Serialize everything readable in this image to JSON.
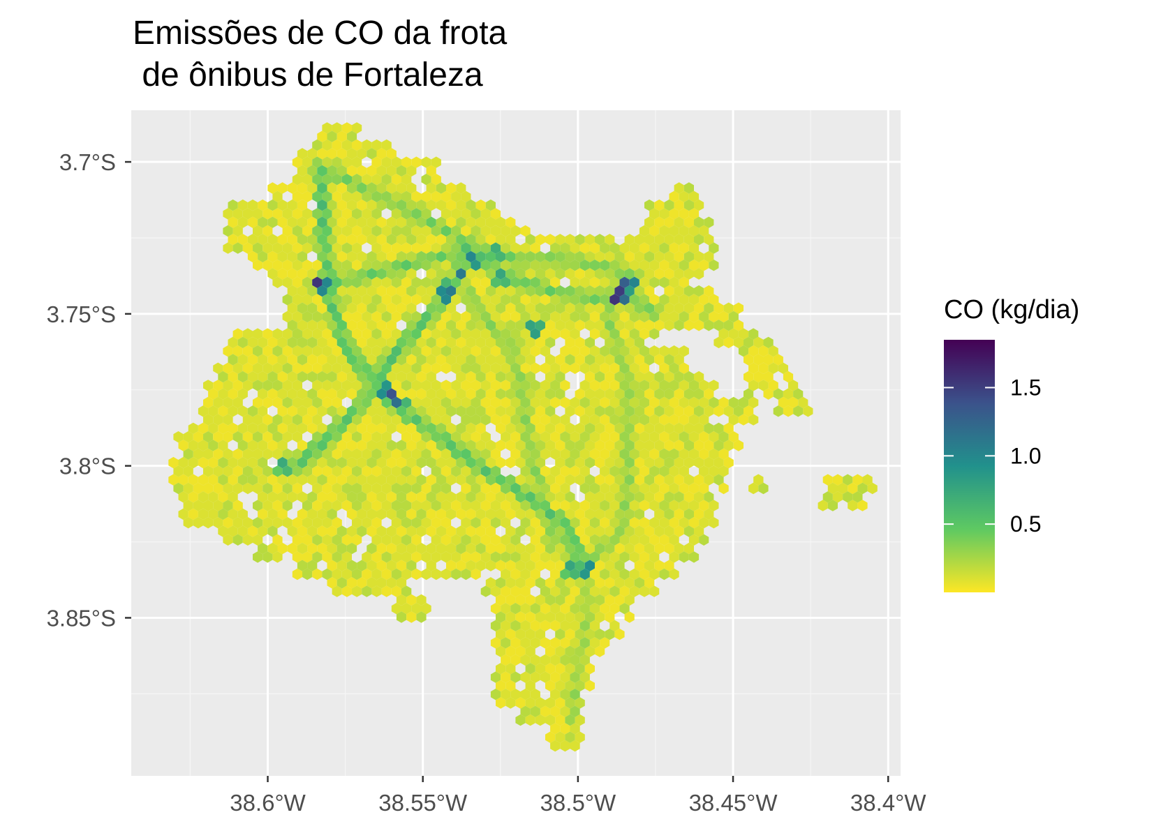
{
  "chart_data": {
    "type": "heatmap",
    "title_lines": [
      "Emissões de CO da frota",
      " de ônibus de Fortaleza"
    ],
    "x_ticks": [
      {
        "value": -38.6,
        "label": "38.6°W"
      },
      {
        "value": -38.55,
        "label": "38.55°W"
      },
      {
        "value": -38.5,
        "label": "38.5°W"
      },
      {
        "value": -38.45,
        "label": "38.45°W"
      },
      {
        "value": -38.4,
        "label": "38.4°W"
      }
    ],
    "y_ticks": [
      {
        "value": -3.7,
        "label": "3.7°S"
      },
      {
        "value": -3.75,
        "label": "3.75°S"
      },
      {
        "value": -3.8,
        "label": "3.8°S"
      },
      {
        "value": -3.85,
        "label": "3.85°S"
      }
    ],
    "xlim": [
      -38.644,
      -38.396
    ],
    "ylim": [
      -3.902,
      -3.683
    ],
    "grid": true,
    "legend": {
      "title": "CO (kg/dia)",
      "placement": "right",
      "range": [
        0.0,
        1.85
      ],
      "ticks": [
        {
          "value": 0.5,
          "label": "0.5"
        },
        {
          "value": 1.0,
          "label": "1.0"
        },
        {
          "value": 1.5,
          "label": "1.5"
        }
      ],
      "colormap": [
        "#fde725",
        "#5ec962",
        "#21918c",
        "#3b528b",
        "#440154"
      ]
    },
    "background_value": 0.08,
    "corridors": [
      {
        "value": 0.55,
        "points": [
          [
            -38.583,
            -3.702
          ],
          [
            -38.582,
            -3.725
          ],
          [
            -38.58,
            -3.745
          ],
          [
            -38.575,
            -3.76
          ],
          [
            -38.565,
            -3.775
          ],
          [
            -38.555,
            -3.783
          ],
          [
            -38.545,
            -3.79
          ],
          [
            -38.535,
            -3.798
          ],
          [
            -38.52,
            -3.808
          ],
          [
            -38.505,
            -3.818
          ],
          [
            -38.498,
            -3.834
          ]
        ]
      },
      {
        "value": 0.45,
        "points": [
          [
            -38.582,
            -3.74
          ],
          [
            -38.57,
            -3.738
          ],
          [
            -38.555,
            -3.734
          ],
          [
            -38.54,
            -3.73
          ],
          [
            -38.532,
            -3.732
          ],
          [
            -38.522,
            -3.738
          ],
          [
            -38.51,
            -3.742
          ],
          [
            -38.496,
            -3.745
          ],
          [
            -38.485,
            -3.744
          ],
          [
            -38.475,
            -3.75
          ]
        ]
      },
      {
        "value": 0.4,
        "points": [
          [
            -38.583,
            -3.702
          ],
          [
            -38.57,
            -3.708
          ],
          [
            -38.555,
            -3.716
          ],
          [
            -38.542,
            -3.723
          ],
          [
            -38.532,
            -3.728
          ],
          [
            -38.52,
            -3.732
          ],
          [
            -38.505,
            -3.732
          ],
          [
            -38.49,
            -3.735
          ],
          [
            -38.482,
            -3.738
          ]
        ]
      },
      {
        "value": 0.55,
        "points": [
          [
            -38.536,
            -3.727
          ],
          [
            -38.538,
            -3.737
          ],
          [
            -38.543,
            -3.745
          ],
          [
            -38.552,
            -3.755
          ],
          [
            -38.562,
            -3.767
          ],
          [
            -38.57,
            -3.78
          ],
          [
            -38.58,
            -3.79
          ],
          [
            -38.592,
            -3.801
          ]
        ]
      },
      {
        "value": 0.35,
        "points": [
          [
            -38.536,
            -3.742
          ],
          [
            -38.53,
            -3.752
          ],
          [
            -38.522,
            -3.76
          ],
          [
            -38.518,
            -3.775
          ],
          [
            -38.516,
            -3.792
          ],
          [
            -38.512,
            -3.808
          ],
          [
            -38.508,
            -3.826
          ]
        ]
      },
      {
        "value": 0.35,
        "points": [
          [
            -38.488,
            -3.744
          ],
          [
            -38.49,
            -3.752
          ],
          [
            -38.487,
            -3.762
          ],
          [
            -38.484,
            -3.772
          ],
          [
            -38.484,
            -3.79
          ],
          [
            -38.484,
            -3.806
          ],
          [
            -38.486,
            -3.822
          ],
          [
            -38.495,
            -3.83
          ]
        ]
      },
      {
        "value": 0.3,
        "points": [
          [
            -38.498,
            -3.834
          ],
          [
            -38.497,
            -3.85
          ],
          [
            -38.5,
            -3.868
          ],
          [
            -38.502,
            -3.884
          ]
        ]
      }
    ],
    "hotspots": [
      {
        "lon": -38.583,
        "lat": -3.74,
        "value": 1.8
      },
      {
        "lon": -38.534,
        "lat": -3.732,
        "value": 1.25
      },
      {
        "lon": -38.538,
        "lat": -3.737,
        "value": 1.2
      },
      {
        "lon": -38.541,
        "lat": -3.742,
        "value": 1.35
      },
      {
        "lon": -38.543,
        "lat": -3.744,
        "value": 1.4
      },
      {
        "lon": -38.486,
        "lat": -3.743,
        "value": 1.6
      },
      {
        "lon": -38.487,
        "lat": -3.745,
        "value": 1.7
      },
      {
        "lon": -38.484,
        "lat": -3.74,
        "value": 1.55
      },
      {
        "lon": -38.561,
        "lat": -3.776,
        "value": 1.45
      },
      {
        "lon": -38.558,
        "lat": -3.779,
        "value": 1.35
      },
      {
        "lon": -38.502,
        "lat": -3.834,
        "value": 1.0
      },
      {
        "lon": -38.497,
        "lat": -3.834,
        "value": 1.1
      },
      {
        "lon": -38.595,
        "lat": -3.8,
        "value": 0.9
      },
      {
        "lon": -38.514,
        "lat": -3.755,
        "value": 1.05
      },
      {
        "lon": -38.526,
        "lat": -3.73,
        "value": 0.95
      },
      {
        "lon": -38.525,
        "lat": -3.738,
        "value": 0.9
      }
    ],
    "extent": {
      "rows": [
        {
          "lat": -3.691,
          "spans": [
            [
              -38.585,
              -38.57
            ]
          ]
        },
        {
          "lat": -3.697,
          "spans": [
            [
              -38.59,
              -38.56
            ]
          ]
        },
        {
          "lat": -3.703,
          "spans": [
            [
              -38.592,
              -38.545
            ]
          ]
        },
        {
          "lat": -3.709,
          "spans": [
            [
              -38.6,
              -38.535
            ],
            [
              -38.47,
              -38.462
            ]
          ]
        },
        {
          "lat": -3.715,
          "spans": [
            [
              -38.613,
              -38.525
            ],
            [
              -38.478,
              -38.46
            ]
          ]
        },
        {
          "lat": -3.721,
          "spans": [
            [
              -38.614,
              -38.515
            ],
            [
              -38.48,
              -38.457
            ]
          ]
        },
        {
          "lat": -3.727,
          "spans": [
            [
              -38.613,
              -38.455
            ]
          ]
        },
        {
          "lat": -3.733,
          "spans": [
            [
              -38.605,
              -38.455
            ]
          ]
        },
        {
          "lat": -3.739,
          "spans": [
            [
              -38.6,
              -38.46
            ]
          ]
        },
        {
          "lat": -3.745,
          "spans": [
            [
              -38.595,
              -38.455
            ]
          ]
        },
        {
          "lat": -3.751,
          "spans": [
            [
              -38.595,
              -38.448
            ]
          ]
        },
        {
          "lat": -3.757,
          "spans": [
            [
              -38.612,
              -38.475
            ],
            [
              -38.455,
              -38.438
            ]
          ]
        },
        {
          "lat": -3.763,
          "spans": [
            [
              -38.615,
              -38.465
            ],
            [
              -38.448,
              -38.434
            ]
          ]
        },
        {
          "lat": -3.769,
          "spans": [
            [
              -38.619,
              -38.46
            ],
            [
              -38.446,
              -38.432
            ]
          ]
        },
        {
          "lat": -3.775,
          "spans": [
            [
              -38.62,
              -38.455
            ],
            [
              -38.446,
              -38.428
            ]
          ]
        },
        {
          "lat": -3.781,
          "spans": [
            [
              -38.622,
              -38.442
            ],
            [
              -38.437,
              -38.425
            ]
          ]
        },
        {
          "lat": -3.787,
          "spans": [
            [
              -38.625,
              -38.442
            ]
          ]
        },
        {
          "lat": -3.793,
          "spans": [
            [
              -38.63,
              -38.448
            ]
          ]
        },
        {
          "lat": -3.799,
          "spans": [
            [
              -38.632,
              -38.45
            ]
          ]
        },
        {
          "lat": -3.805,
          "spans": [
            [
              -38.632,
              -38.452
            ],
            [
              -38.445,
              -38.438
            ],
            [
              -38.42,
              -38.405
            ]
          ]
        },
        {
          "lat": -3.811,
          "spans": [
            [
              -38.63,
              -38.455
            ],
            [
              -38.422,
              -38.407
            ]
          ]
        },
        {
          "lat": -3.817,
          "spans": [
            [
              -38.628,
              -38.455
            ]
          ]
        },
        {
          "lat": -3.823,
          "spans": [
            [
              -38.616,
              -38.458
            ]
          ]
        },
        {
          "lat": -3.829,
          "spans": [
            [
              -38.605,
              -38.462
            ]
          ]
        },
        {
          "lat": -3.835,
          "spans": [
            [
              -38.592,
              -38.468
            ]
          ]
        },
        {
          "lat": -3.841,
          "spans": [
            [
              -38.58,
              -38.555
            ],
            [
              -38.53,
              -38.475
            ]
          ]
        },
        {
          "lat": -3.847,
          "spans": [
            [
              -38.56,
              -38.548
            ],
            [
              -38.528,
              -38.482
            ]
          ]
        },
        {
          "lat": -3.853,
          "spans": [
            [
              -38.528,
              -38.485
            ]
          ]
        },
        {
          "lat": -3.859,
          "spans": [
            [
              -38.527,
              -38.49
            ]
          ]
        },
        {
          "lat": -3.865,
          "spans": [
            [
              -38.525,
              -38.495
            ]
          ]
        },
        {
          "lat": -3.871,
          "spans": [
            [
              -38.527,
              -38.495
            ]
          ]
        },
        {
          "lat": -3.877,
          "spans": [
            [
              -38.528,
              -38.498
            ]
          ]
        },
        {
          "lat": -3.883,
          "spans": [
            [
              -38.52,
              -38.498
            ]
          ]
        },
        {
          "lat": -3.889,
          "spans": [
            [
              -38.51,
              -38.498
            ]
          ]
        }
      ]
    }
  }
}
